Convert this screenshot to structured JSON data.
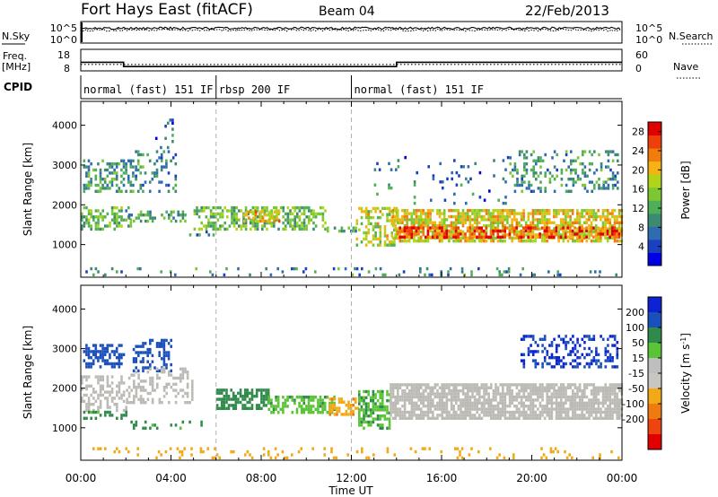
{
  "header": {
    "station": "Fort Hays East (fitACF)",
    "beam": "Beam 04",
    "date": "22/Feb/2013"
  },
  "left_labels": {
    "nsky": "N.Sky",
    "freq_line1": "Freq.",
    "freq_line2": "[MHz]",
    "cpid": "CPID"
  },
  "right_labels": {
    "nsearch": "N.Search",
    "nave": "Nave"
  },
  "colors": {
    "power_scale": [
      "#0000e6",
      "#1a3fbf",
      "#2e6bb0",
      "#3c8a72",
      "#4fae58",
      "#7cc832",
      "#b0d41a",
      "#f4b312",
      "#f07c0c",
      "#ee3f0a",
      "#e00000"
    ],
    "velocity_scale": [
      "#0d22d2",
      "#1b50bc",
      "#2f8a4b",
      "#5ac436",
      "#bebebe",
      "#c8c6c0",
      "#f2a916",
      "#ef7a10",
      "#ee4410",
      "#e00000"
    ],
    "ground_scatter": "#bcbab4"
  },
  "chart_data": [
    {
      "type": "line",
      "name": "noise_panel",
      "xlim": [
        0,
        24
      ],
      "yticks_left": [
        "10^5",
        "10^0"
      ],
      "yticks_right": [
        "10^5",
        "10^0"
      ],
      "series": [
        {
          "label": "N.Sky",
          "x": [
            0,
            24
          ],
          "y_log10": [
            5.0,
            5.0
          ]
        },
        {
          "label": "N.Search",
          "x": [
            0,
            24
          ],
          "y_log10": [
            5.0,
            5.0
          ]
        }
      ]
    },
    {
      "type": "line",
      "name": "frequency_nave_panel",
      "xlim": [
        0,
        24
      ],
      "yticks_left": [
        "18",
        "8"
      ],
      "ylim_left": [
        8,
        18
      ],
      "yticks_right": [
        "60",
        "0"
      ],
      "ylim_right": [
        0,
        60
      ],
      "series": [
        {
          "label": "Freq.",
          "x": [
            0,
            1.9,
            1.9,
            14.0,
            14.0,
            24
          ],
          "y": [
            12.0,
            12.0,
            10.0,
            10.0,
            12.0,
            12.0
          ]
        },
        {
          "label": "Nave",
          "x": [
            0,
            24
          ],
          "y": [
            18,
            18
          ]
        }
      ]
    },
    {
      "type": "table",
      "name": "cpid_panel",
      "segments": [
        {
          "label": "normal (fast) 151 IF",
          "start": 0,
          "end": 6
        },
        {
          "label": "rbsp 200 IF",
          "start": 6,
          "end": 12
        },
        {
          "label": "normal (fast) 151 IF",
          "start": 12,
          "end": 24
        }
      ]
    },
    {
      "type": "heatmap",
      "name": "power",
      "xlabel": "",
      "ylabel": "Slant Range [km]",
      "xlim": [
        0,
        24
      ],
      "ylim": [
        180,
        4600
      ],
      "yticks": [
        1000,
        2000,
        3000,
        4000
      ],
      "colorbar_label": "Power [dB]",
      "colorbar_ticks": [
        4,
        8,
        12,
        16,
        20,
        24,
        28
      ],
      "colorbar_range": [
        0,
        30
      ],
      "regions": [
        {
          "t0": 0.0,
          "t1": 2.2,
          "r0": 1350,
          "r1": 1950,
          "mean": 13,
          "density": 0.55
        },
        {
          "t0": 0.1,
          "t1": 2.3,
          "r0": 2300,
          "r1": 3100,
          "mean": 11,
          "density": 0.4
        },
        {
          "t0": 2.0,
          "t1": 4.6,
          "r0": 1550,
          "r1": 1850,
          "mean": 11,
          "density": 0.35
        },
        {
          "t0": 2.4,
          "t1": 4.2,
          "r0": 2300,
          "r1": 3300,
          "mean": 9,
          "density": 0.3
        },
        {
          "t0": 3.3,
          "t1": 4.1,
          "r0": 3400,
          "r1": 4100,
          "mean": 6,
          "density": 0.12
        },
        {
          "t0": 4.7,
          "t1": 5.9,
          "r0": 1050,
          "r1": 1350,
          "mean": 8,
          "density": 0.25
        },
        {
          "t0": 5.0,
          "t1": 10.8,
          "r0": 1350,
          "r1": 1900,
          "mean": 14,
          "density": 0.55
        },
        {
          "t0": 7.2,
          "t1": 8.8,
          "r0": 1550,
          "r1": 1800,
          "mean": 21,
          "density": 0.6
        },
        {
          "t0": 10.8,
          "t1": 12.2,
          "r0": 1300,
          "r1": 1450,
          "mean": 10,
          "density": 0.45
        },
        {
          "t0": 12.2,
          "t1": 14.0,
          "r0": 950,
          "r1": 1900,
          "mean": 17,
          "density": 0.5
        },
        {
          "t0": 13.8,
          "t1": 24.0,
          "r0": 1050,
          "r1": 1850,
          "mean": 19,
          "density": 0.7
        },
        {
          "t0": 14.0,
          "t1": 24.0,
          "r0": 1150,
          "r1": 1400,
          "mean": 26,
          "density": 0.55
        },
        {
          "t0": 13.0,
          "t1": 19.0,
          "r0": 2000,
          "r1": 3200,
          "mean": 7,
          "density": 0.06
        },
        {
          "t0": 19.0,
          "t1": 23.8,
          "r0": 2300,
          "r1": 3300,
          "mean": 10,
          "density": 0.3
        },
        {
          "t0": 0.0,
          "t1": 24.0,
          "r0": 200,
          "r1": 420,
          "mean": 9,
          "density": 0.12
        }
      ]
    },
    {
      "type": "heatmap",
      "name": "velocity",
      "xlabel": "Time UT",
      "ylabel": "Slant Range [km]",
      "xlim": [
        0,
        24
      ],
      "ylim": [
        180,
        4600
      ],
      "yticks": [
        1000,
        2000,
        3000,
        4000
      ],
      "xticks": [
        "00:00",
        "04:00",
        "08:00",
        "12:00",
        "16:00",
        "20:00",
        "00:00"
      ],
      "colorbar_label": "Velocity [m s^-1]",
      "colorbar_ticks": [
        200,
        100,
        50,
        15,
        -15,
        -50,
        -100,
        -200
      ],
      "regions": [
        {
          "t0": 0.1,
          "t1": 1.9,
          "r0": 2500,
          "r1": 3100,
          "mean": 180,
          "density": 0.55
        },
        {
          "t0": 2.3,
          "t1": 4.0,
          "r0": 2400,
          "r1": 3200,
          "mean": 150,
          "density": 0.45
        },
        {
          "t0": 0.0,
          "t1": 2.0,
          "r0": 1400,
          "r1": 2300,
          "mean": 0,
          "density": 0.45
        },
        {
          "t0": 2.0,
          "t1": 5.0,
          "r0": 1600,
          "r1": 2500,
          "mean": 0,
          "density": 0.35
        },
        {
          "t0": 0.0,
          "t1": 2.2,
          "r0": 1200,
          "r1": 1400,
          "mean": 60,
          "density": 0.25
        },
        {
          "t0": 2.2,
          "t1": 5.5,
          "r0": 950,
          "r1": 1150,
          "mean": 60,
          "density": 0.2
        },
        {
          "t0": 6.0,
          "t1": 8.3,
          "r0": 1450,
          "r1": 1950,
          "mean": 85,
          "density": 0.65
        },
        {
          "t0": 8.3,
          "t1": 11.2,
          "r0": 1350,
          "r1": 1750,
          "mean": 40,
          "density": 0.6
        },
        {
          "t0": 11.0,
          "t1": 12.3,
          "r0": 1300,
          "r1": 1700,
          "mean": -40,
          "density": 0.55
        },
        {
          "t0": 12.3,
          "t1": 13.7,
          "r0": 950,
          "r1": 1900,
          "mean": 45,
          "density": 0.6
        },
        {
          "t0": 13.7,
          "t1": 24.0,
          "r0": 1200,
          "r1": 2050,
          "mean": 0,
          "density": 0.8
        },
        {
          "t0": 19.5,
          "t1": 23.8,
          "r0": 2500,
          "r1": 3300,
          "mean": 200,
          "density": 0.35
        },
        {
          "t0": 0.0,
          "t1": 24.0,
          "r0": 200,
          "r1": 450,
          "mean": -30,
          "density": 0.12
        }
      ]
    }
  ]
}
